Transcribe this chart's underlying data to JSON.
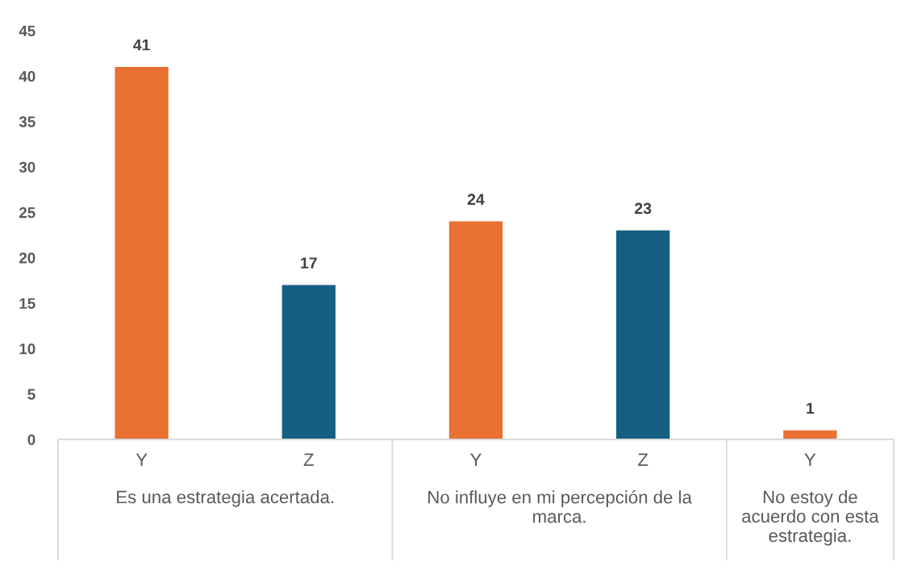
{
  "chart_data": {
    "type": "bar",
    "categories": [
      "Y",
      "Z",
      "Y",
      "Z",
      "Y"
    ],
    "values": [
      41,
      17,
      24,
      23,
      1
    ],
    "colors": [
      "#e97132",
      "#156082",
      "#e97132",
      "#156082",
      "#e97132"
    ],
    "ylim": [
      0,
      45
    ],
    "yticks": [
      0,
      5,
      10,
      15,
      20,
      25,
      30,
      35,
      40,
      45
    ],
    "data_labels": true,
    "annotations": [
      "Es una estrategia acertada.",
      "No influye en mi percepción de la marca.",
      "No estoy de acuerdo con esta estrategia."
    ]
  }
}
